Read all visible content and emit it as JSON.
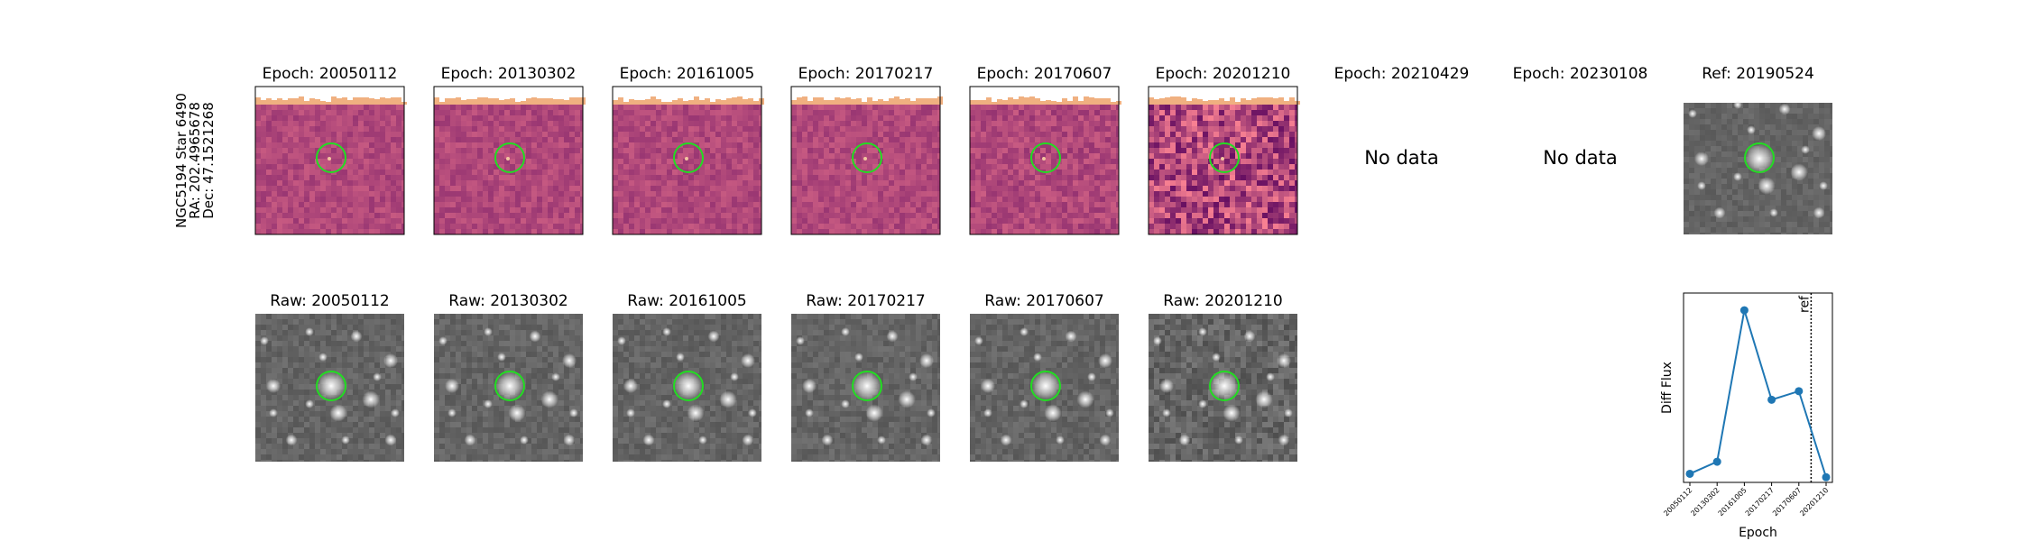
{
  "star_label": {
    "line1": "NGC5194 Star 6490",
    "line2": "RA: 202.4965678",
    "line3": "Dec: 47.1521268"
  },
  "diff_panels": [
    {
      "title": "Epoch: 20050112",
      "has_data": true,
      "noise": 0.5
    },
    {
      "title": "Epoch: 20130302",
      "has_data": true,
      "noise": 0.5
    },
    {
      "title": "Epoch: 20161005",
      "has_data": true,
      "noise": 0.5
    },
    {
      "title": "Epoch: 20170217",
      "has_data": true,
      "noise": 0.5
    },
    {
      "title": "Epoch: 20170607",
      "has_data": true,
      "noise": 0.6
    },
    {
      "title": "Epoch: 20201210",
      "has_data": true,
      "noise": 1.6
    },
    {
      "title": "Epoch: 20210429",
      "has_data": false,
      "message": "No data"
    },
    {
      "title": "Epoch: 20230108",
      "has_data": false,
      "message": "No data"
    }
  ],
  "ref_panel": {
    "title": "Ref: 20190524"
  },
  "raw_panels": [
    {
      "title": "Raw: 20050112"
    },
    {
      "title": "Raw: 20130302"
    },
    {
      "title": "Raw: 20161005"
    },
    {
      "title": "Raw: 20170217"
    },
    {
      "title": "Raw: 20170607"
    },
    {
      "title": "Raw: 20201210"
    }
  ],
  "colors": {
    "marker_circle": "#22dd22",
    "line_series": "#1f77b4",
    "diff_base": "#b0487a",
    "top_strip": "#f0b080"
  },
  "chart_data": {
    "type": "line",
    "categories": [
      "20050112",
      "20130302",
      "20161005",
      "20170217",
      "20170607",
      "20201210"
    ],
    "values": [
      0.05,
      0.12,
      1.0,
      0.48,
      0.53,
      0.03
    ],
    "xlabel": "Epoch",
    "ylabel": "Diff Flux",
    "ylim": [
      0,
      1.1
    ],
    "ref_marker": {
      "label": "ref",
      "position": 4.45
    }
  }
}
